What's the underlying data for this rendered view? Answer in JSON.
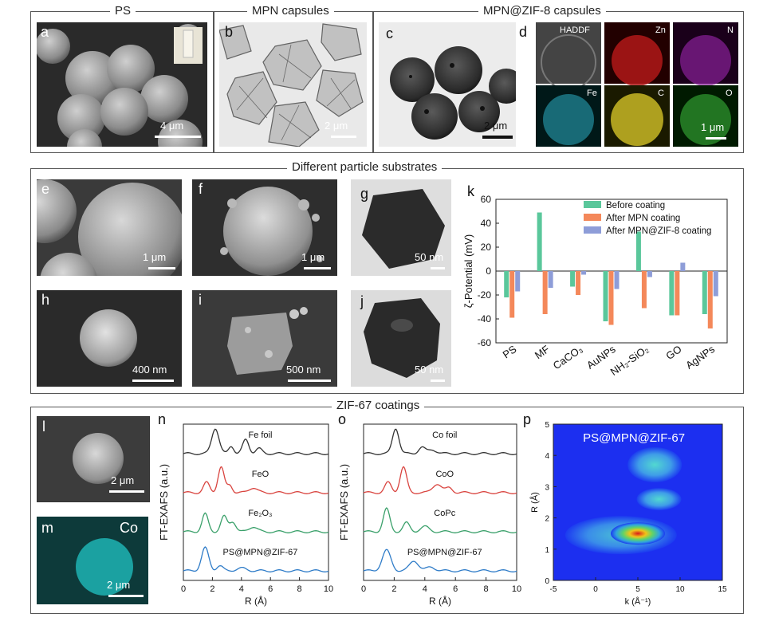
{
  "sections": {
    "top_ps": "PS",
    "top_mpn": "MPN capsules",
    "top_zif8": "MPN@ZIF-8 capsules",
    "middle": "Different particle substrates",
    "bottom": "ZIF-67 coatings"
  },
  "panels": {
    "a": {
      "label": "a",
      "scale": "4 μm"
    },
    "b": {
      "label": "b",
      "scale": "2 μm"
    },
    "c": {
      "label": "c",
      "scale": "2 μm"
    },
    "d": {
      "label": "d",
      "maps": [
        "HADDF",
        "Zn",
        "N",
        "Fe",
        "C",
        "O"
      ],
      "scale": "1 μm"
    },
    "e": {
      "label": "e",
      "scale": "1 μm"
    },
    "f": {
      "label": "f",
      "scale": "1 μm"
    },
    "g": {
      "label": "g",
      "scale": "50 nm"
    },
    "h": {
      "label": "h",
      "scale": "400 nm"
    },
    "i": {
      "label": "i",
      "scale": "500 nm"
    },
    "j": {
      "label": "j",
      "scale": "50 nm"
    },
    "k": {
      "label": "k"
    },
    "l": {
      "label": "l",
      "scale": "2 μm"
    },
    "m": {
      "label": "m",
      "element": "Co",
      "scale": "2 μm"
    },
    "n": {
      "label": "n",
      "curves": [
        "Fe foil",
        "FeO",
        "Fe₂O₃",
        "PS@MPN@ZIF-67"
      ]
    },
    "o": {
      "label": "o",
      "curves": [
        "Co foil",
        "CoO",
        "CoPc",
        "PS@MPN@ZIF-67"
      ]
    },
    "p": {
      "label": "p",
      "inset": "PS@MPN@ZIF-67"
    }
  },
  "chart_data": [
    {
      "type": "bar",
      "title": "",
      "ylabel": "ζ-Potential (mV)",
      "xlabel": "",
      "ylim": [
        -60,
        60
      ],
      "yticks": [
        "60",
        "40",
        "20",
        "0",
        "-20",
        "-40",
        "-60"
      ],
      "categories": [
        "PS",
        "MF",
        "CaCO₃",
        "AuNPs",
        "NH₂-SiO₂",
        "GO",
        "AgNPs"
      ],
      "series": [
        {
          "name": "Before coating",
          "color": "#5ac79b",
          "values": [
            -22,
            49,
            -13,
            -42,
            33,
            -37,
            -36
          ]
        },
        {
          "name": "After MPN coating",
          "color": "#f4885a",
          "values": [
            -39,
            -36,
            -20,
            -45,
            -31,
            -37,
            -48
          ]
        },
        {
          "name": "After MPN@ZIF-8 coating",
          "color": "#8e9dd8",
          "values": [
            -17,
            -14,
            -3,
            -15,
            -5,
            7,
            -21
          ]
        }
      ],
      "legend": "top-right"
    },
    {
      "type": "line",
      "ylabel": "FT-EXAFS (a.u.)",
      "xlabel": "R (Å)",
      "xlim": [
        0,
        10
      ],
      "xticks": [
        "0",
        "2",
        "4",
        "6",
        "8",
        "10"
      ],
      "series": [
        {
          "name": "Fe foil",
          "color": "#333333"
        },
        {
          "name": "FeO",
          "color": "#d9443f"
        },
        {
          "name": "Fe₂O₃",
          "color": "#3aa06a"
        },
        {
          "name": "PS@MPN@ZIF-67",
          "color": "#2f7cc8"
        }
      ]
    },
    {
      "type": "line",
      "ylabel": "FT-EXAFS (a.u.)",
      "xlabel": "R (Å)",
      "xlim": [
        0,
        10
      ],
      "xticks": [
        "0",
        "2",
        "4",
        "6",
        "8",
        "10"
      ],
      "series": [
        {
          "name": "Co foil",
          "color": "#333333"
        },
        {
          "name": "CoO",
          "color": "#d9443f"
        },
        {
          "name": "CoPc",
          "color": "#3aa06a"
        },
        {
          "name": "PS@MPN@ZIF-67",
          "color": "#2f7cc8"
        }
      ]
    },
    {
      "type": "heatmap",
      "title": "PS@MPN@ZIF-67",
      "xlabel": "k (Å⁻¹)",
      "ylabel": "R (Å)",
      "xlim": [
        -5,
        15
      ],
      "ylim": [
        0,
        5
      ],
      "xticks": [
        "-5",
        "0",
        "5",
        "10",
        "15"
      ],
      "yticks": [
        "0",
        "1",
        "2",
        "3",
        "4",
        "5"
      ]
    }
  ]
}
